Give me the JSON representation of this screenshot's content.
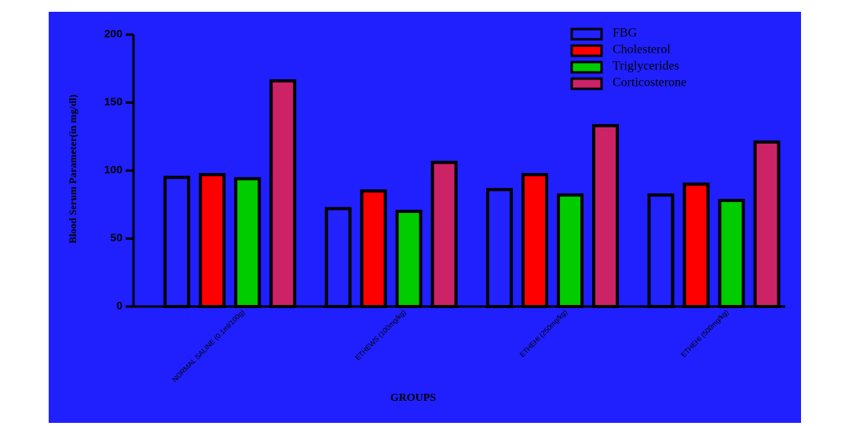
{
  "chart_data": {
    "type": "bar",
    "y_label": "Blood Serum Parameter(in mg/dl)",
    "x_label": "GROUPS",
    "categories": [
      "NORMAL SALINE (0.1ml/100g)",
      "ETHEWS (100mg/kg)",
      "ETHEHI (250mg/kg)",
      "ETHEHI (500mg/kg)"
    ],
    "series": [
      {
        "name": "FBG",
        "color": "#2222ff",
        "values": [
          95,
          72,
          86,
          82
        ]
      },
      {
        "name": "Cholesterol",
        "color": "#ff0000",
        "values": [
          97,
          85,
          97,
          90
        ]
      },
      {
        "name": "Triglycerides",
        "color": "#00cc00",
        "values": [
          94,
          70,
          82,
          78
        ]
      },
      {
        "name": "Corticosterone",
        "color": "#cc2266",
        "values": [
          166,
          106,
          133,
          121
        ]
      }
    ],
    "ylim": [
      0,
      200
    ],
    "yticks": [
      0,
      50,
      100,
      150,
      200
    ]
  }
}
